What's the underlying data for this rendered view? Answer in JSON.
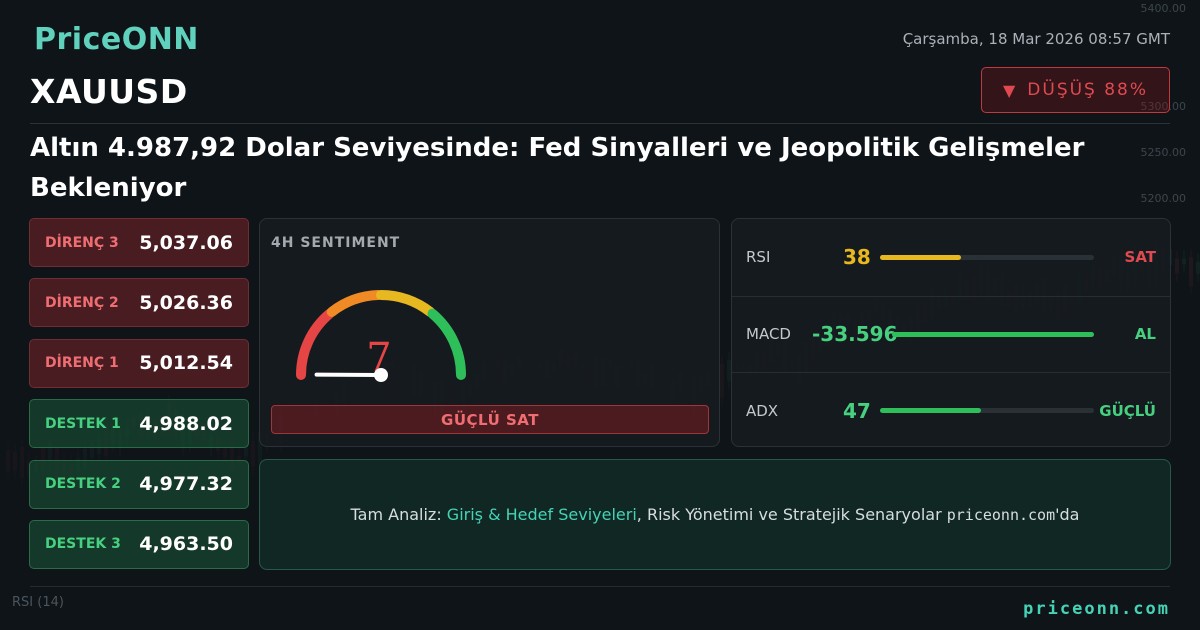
{
  "brand": {
    "logo": "PriceONN",
    "footer_site": "priceonn.com"
  },
  "date": "Çarşamba, 18 Mar 2026 08:57 GMT",
  "symbol": "XAUUSD",
  "trend": {
    "label": "DÜŞÜŞ 88%",
    "direction": "down",
    "color": "#e0494f"
  },
  "headline": "Altın 4.987,92 Dolar Seviyesinde: Fed Sinyalleri ve Jeopolitik Gelişmeler Bekleniyor",
  "levels": [
    {
      "label": "DİRENÇ 3",
      "value": "5,037.06",
      "kind": "resistance"
    },
    {
      "label": "DİRENÇ 2",
      "value": "5,026.36",
      "kind": "resistance"
    },
    {
      "label": "DİRENÇ 1",
      "value": "5,012.54",
      "kind": "resistance"
    },
    {
      "label": "DESTEK 1",
      "value": "4,988.02",
      "kind": "support"
    },
    {
      "label": "DESTEK 2",
      "value": "4,977.32",
      "kind": "support"
    },
    {
      "label": "DESTEK 3",
      "value": "4,963.50",
      "kind": "support"
    }
  ],
  "sentiment": {
    "title": "4H SENTIMENT",
    "score": "7",
    "score_max": 100,
    "label": "GÜÇLÜ SAT",
    "colors": [
      "#e64545",
      "#f08a24",
      "#e8b820",
      "#2fbf5a"
    ]
  },
  "indicators": [
    {
      "name": "RSI",
      "value": "38",
      "value_color": "#e8b820",
      "fill": 0.38,
      "fill_color": "#e8b820",
      "signal": "SAT",
      "signal_color": "#e0494f"
    },
    {
      "name": "MACD",
      "value": "-33.596",
      "value_color": "#46d07f",
      "fill": 1.0,
      "fill_color": "#2fbf5a",
      "signal": "AL",
      "signal_color": "#46d07f"
    },
    {
      "name": "ADX",
      "value": "47",
      "value_color": "#46d07f",
      "fill": 0.47,
      "fill_color": "#2fbf5a",
      "signal": "GÜÇLÜ",
      "signal_color": "#46d07f"
    }
  ],
  "cta": {
    "prefix": "Tam Analiz: ",
    "highlight": "Giriş & Hedef Seviyeleri",
    "middle": ", Risk Yönetimi ve Stratejik Senaryolar ",
    "site": "priceonn.com",
    "suffix": "'da"
  },
  "background": {
    "price_ticks": [
      "5400.00",
      "5300.00",
      "5250.00",
      "5200.00"
    ],
    "rsi_label": "RSI (14)"
  }
}
